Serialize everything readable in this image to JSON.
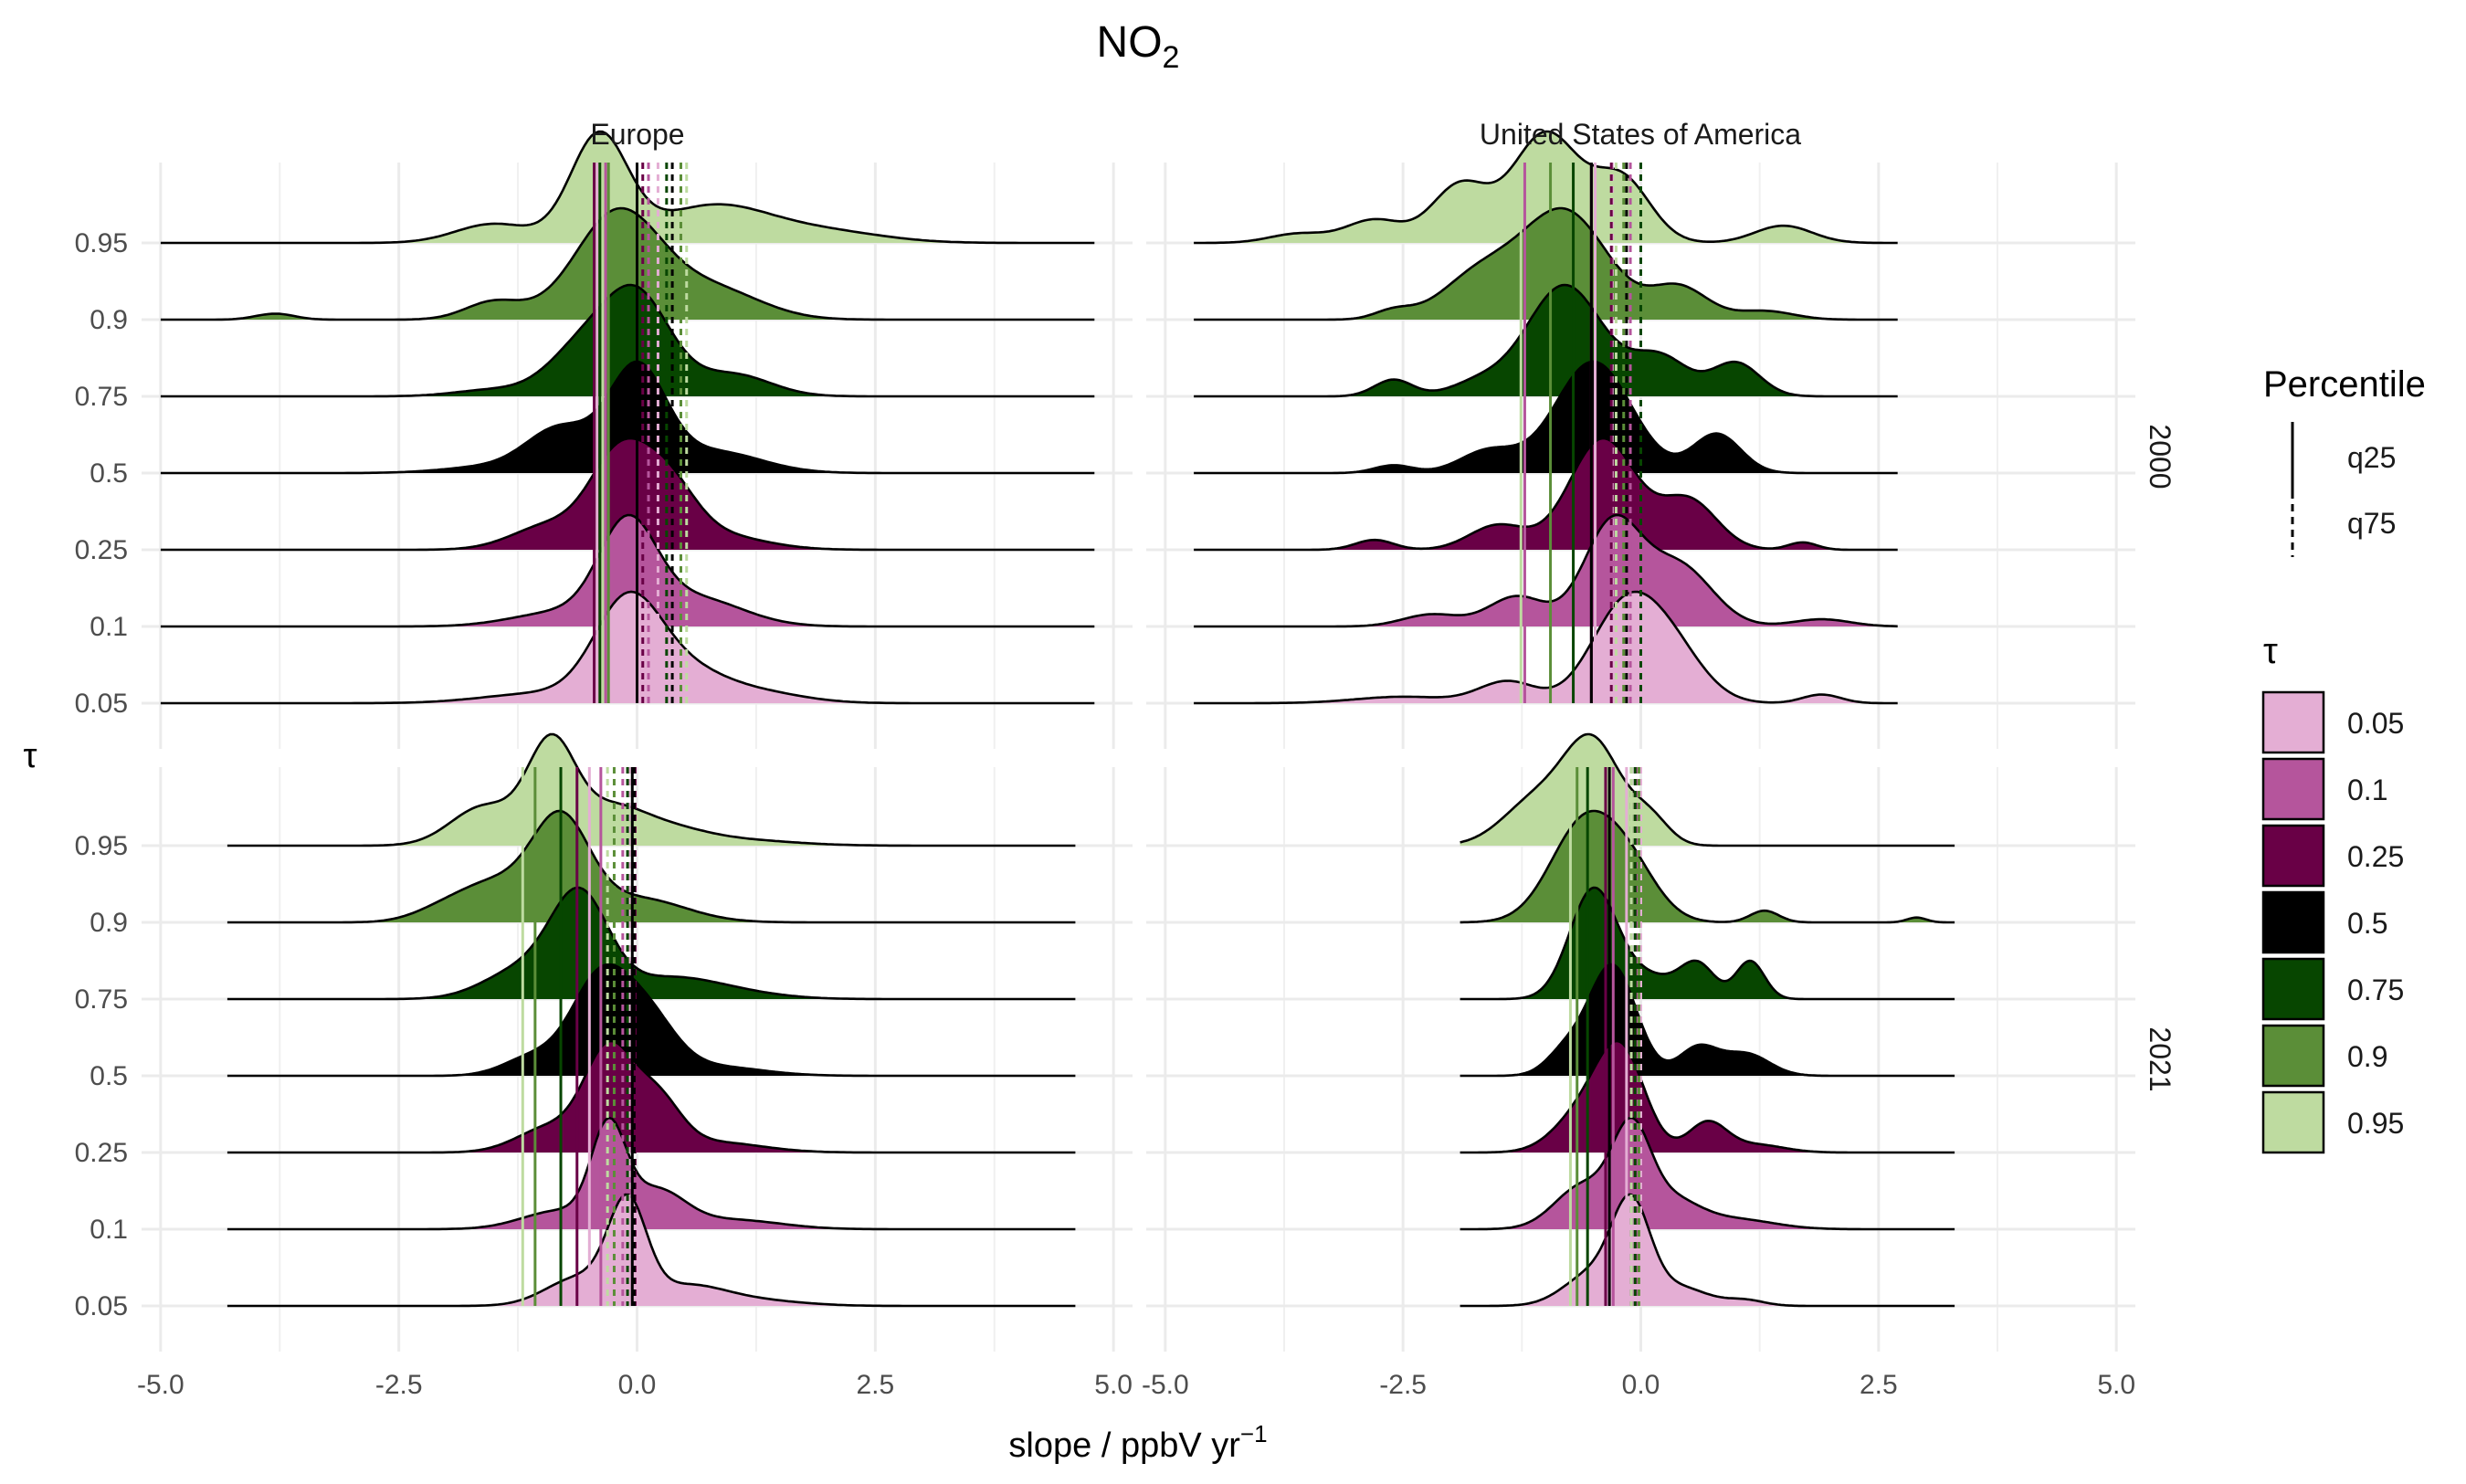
{
  "chart_data": {
    "type": "ridgeline-density",
    "title": "NO",
    "title_subscript": "2",
    "xlabel": "slope / ppbV yr",
    "xlabel_superscript": "−1",
    "ylabel": "τ",
    "xlim": [
      -5.2,
      5.2
    ],
    "x_ticks": [
      -5.0,
      -2.5,
      0.0,
      2.5,
      5.0
    ],
    "x_tick_labels": [
      "-5.0",
      "-2.5",
      "0.0",
      "2.5",
      "5.0"
    ],
    "tau_levels": [
      "0.05",
      "0.1",
      "0.25",
      "0.5",
      "0.75",
      "0.9",
      "0.95"
    ],
    "tau_colors": [
      "#e4aed4",
      "#b5559c",
      "#690046",
      "#000000",
      "#074600",
      "#5b8e38",
      "#bedba0"
    ],
    "column_labels": [
      "Europe",
      "United States of America"
    ],
    "row_labels": [
      "2000",
      "2021"
    ],
    "grid": true,
    "legend_position": "right",
    "legend": {
      "percentile_title": "Percentile",
      "percentile_items": [
        {
          "label": "q25",
          "linestyle": "solid"
        },
        {
          "label": "q75",
          "linestyle": "dashed"
        }
      ],
      "tau_title": "τ"
    },
    "panels": [
      {
        "region": "Europe",
        "year": "2000",
        "range": [
          -5.0,
          4.8
        ],
        "ridges": [
          {
            "tau": "0.05",
            "peaks": [
              [
                -0.1,
                0.35,
                1.0
              ],
              [
                0.5,
                0.4,
                0.28
              ],
              [
                1.2,
                0.5,
                0.12
              ],
              [
                -1.0,
                0.6,
                0.1
              ]
            ]
          },
          {
            "tau": "0.1",
            "peaks": [
              [
                -0.1,
                0.3,
                1.0
              ],
              [
                0.6,
                0.5,
                0.3
              ],
              [
                -0.8,
                0.5,
                0.15
              ]
            ]
          },
          {
            "tau": "0.25",
            "peaks": [
              [
                -0.2,
                0.3,
                0.85
              ],
              [
                0.3,
                0.3,
                0.6
              ],
              [
                -0.9,
                0.4,
                0.25
              ],
              [
                0.8,
                0.5,
                0.15
              ]
            ]
          },
          {
            "tau": "0.5",
            "peaks": [
              [
                0.0,
                0.3,
                0.95
              ],
              [
                -0.8,
                0.35,
                0.4
              ],
              [
                0.8,
                0.5,
                0.2
              ],
              [
                -1.5,
                0.5,
                0.06
              ]
            ]
          },
          {
            "tau": "0.75",
            "peaks": [
              [
                0.0,
                0.35,
                0.9
              ],
              [
                -0.6,
                0.35,
                0.4
              ],
              [
                1.0,
                0.4,
                0.2
              ],
              [
                -1.5,
                0.4,
                0.06
              ]
            ]
          },
          {
            "tau": "0.9",
            "peaks": [
              [
                -0.2,
                0.45,
                0.9
              ],
              [
                0.8,
                0.5,
                0.25
              ],
              [
                -1.5,
                0.3,
                0.15
              ],
              [
                -3.8,
                0.2,
                0.05
              ]
            ]
          },
          {
            "tau": "0.95",
            "peaks": [
              [
                -0.4,
                0.3,
                1.0
              ],
              [
                0.8,
                0.6,
                0.35
              ],
              [
                -1.5,
                0.4,
                0.18
              ],
              [
                2.0,
                0.6,
                0.1
              ]
            ]
          }
        ],
        "q25": [
          -0.42,
          -0.33,
          -0.45,
          0.0,
          -0.39,
          -0.3,
          -0.36
        ],
        "q75": [
          0.22,
          0.12,
          0.06,
          0.37,
          0.31,
          0.46,
          0.52
        ]
      },
      {
        "region": "United States of America",
        "year": "2000",
        "range": [
          -4.7,
          2.7
        ],
        "ridges": [
          {
            "tau": "0.05",
            "peaks": [
              [
                -0.2,
                0.35,
                0.8
              ],
              [
                0.3,
                0.35,
                0.5
              ],
              [
                -1.4,
                0.3,
                0.2
              ],
              [
                -2.5,
                0.5,
                0.06
              ],
              [
                1.9,
                0.2,
                0.08
              ]
            ]
          },
          {
            "tau": "0.1",
            "peaks": [
              [
                -0.3,
                0.3,
                0.85
              ],
              [
                0.4,
                0.35,
                0.5
              ],
              [
                -1.3,
                0.3,
                0.25
              ],
              [
                -2.2,
                0.3,
                0.1
              ],
              [
                1.9,
                0.3,
                0.06
              ]
            ]
          },
          {
            "tau": "0.25",
            "peaks": [
              [
                -0.4,
                0.35,
                0.9
              ],
              [
                0.5,
                0.3,
                0.4
              ],
              [
                -1.5,
                0.3,
                0.2
              ],
              [
                -2.8,
                0.2,
                0.08
              ],
              [
                1.7,
                0.15,
                0.06
              ]
            ]
          },
          {
            "tau": "0.5",
            "peaks": [
              [
                -0.5,
                0.4,
                1.0
              ],
              [
                0.8,
                0.25,
                0.35
              ],
              [
                -1.6,
                0.3,
                0.2
              ],
              [
                -2.6,
                0.2,
                0.07
              ]
            ]
          },
          {
            "tau": "0.75",
            "peaks": [
              [
                -0.8,
                0.4,
                1.0
              ],
              [
                0.2,
                0.3,
                0.35
              ],
              [
                1.0,
                0.25,
                0.3
              ],
              [
                -2.6,
                0.2,
                0.15
              ],
              [
                -1.7,
                0.3,
                0.12
              ]
            ]
          },
          {
            "tau": "0.9",
            "peaks": [
              [
                -0.8,
                0.45,
                1.0
              ],
              [
                -1.7,
                0.4,
                0.4
              ],
              [
                0.4,
                0.3,
                0.3
              ],
              [
                -2.6,
                0.2,
                0.08
              ],
              [
                1.3,
                0.3,
                0.08
              ]
            ]
          },
          {
            "tau": "0.95",
            "peaks": [
              [
                -1.0,
                0.35,
                0.95
              ],
              [
                -0.2,
                0.3,
                0.55
              ],
              [
                -1.9,
                0.3,
                0.5
              ],
              [
                -2.8,
                0.3,
                0.2
              ],
              [
                1.5,
                0.3,
                0.15
              ],
              [
                -3.6,
                0.3,
                0.08
              ]
            ]
          }
        ],
        "q25": [
          -0.48,
          -1.22,
          -0.52,
          -0.52,
          -0.71,
          -0.95,
          -1.26
        ],
        "q75": [
          -0.3,
          -0.11,
          -0.31,
          -0.15,
          0.0,
          -0.18,
          -0.26
        ]
      },
      {
        "region": "Europe",
        "year": "2021",
        "range": [
          -4.3,
          4.6
        ],
        "ridges": [
          {
            "tau": "0.05",
            "peaks": [
              [
                -0.1,
                0.2,
                1.0
              ],
              [
                -0.6,
                0.35,
                0.3
              ],
              [
                0.5,
                0.4,
                0.2
              ],
              [
                1.2,
                0.5,
                0.06
              ]
            ]
          },
          {
            "tau": "0.1",
            "peaks": [
              [
                -0.3,
                0.18,
                1.0
              ],
              [
                0.2,
                0.3,
                0.4
              ],
              [
                -0.8,
                0.4,
                0.2
              ],
              [
                1.0,
                0.5,
                0.1
              ]
            ]
          },
          {
            "tau": "0.25",
            "peaks": [
              [
                -0.3,
                0.25,
                0.95
              ],
              [
                0.2,
                0.25,
                0.5
              ],
              [
                -0.9,
                0.35,
                0.25
              ],
              [
                0.8,
                0.5,
                0.1
              ]
            ]
          },
          {
            "tau": "0.5",
            "peaks": [
              [
                -0.4,
                0.3,
                1.0
              ],
              [
                0.1,
                0.3,
                0.6
              ],
              [
                -1.1,
                0.3,
                0.2
              ],
              [
                0.8,
                0.5,
                0.1
              ]
            ]
          },
          {
            "tau": "0.75",
            "peaks": [
              [
                -0.6,
                0.3,
                1.0
              ],
              [
                -1.2,
                0.4,
                0.3
              ],
              [
                0.3,
                0.5,
                0.2
              ],
              [
                1.0,
                0.5,
                0.06
              ]
            ]
          },
          {
            "tau": "0.9",
            "peaks": [
              [
                -0.8,
                0.3,
                1.0
              ],
              [
                -1.5,
                0.4,
                0.4
              ],
              [
                0.0,
                0.5,
                0.25
              ],
              [
                -2.1,
                0.3,
                0.08
              ]
            ]
          },
          {
            "tau": "0.95",
            "peaks": [
              [
                -0.9,
                0.25,
                1.0
              ],
              [
                -1.6,
                0.35,
                0.4
              ],
              [
                -0.3,
                0.35,
                0.35
              ],
              [
                0.3,
                0.4,
                0.15
              ],
              [
                1.0,
                0.6,
                0.06
              ]
            ]
          }
        ],
        "q25": [
          -0.5,
          -0.38,
          -0.63,
          -0.05,
          -0.8,
          -1.07,
          -1.2
        ],
        "q75": [
          -0.08,
          -0.15,
          -0.02,
          -0.03,
          -0.1,
          -0.24,
          -0.31
        ]
      },
      {
        "region": "United States of America",
        "year": "2021",
        "range": [
          -1.9,
          3.3
        ],
        "ridges": [
          {
            "tau": "0.05",
            "peaks": [
              [
                -0.1,
                0.2,
                1.0
              ],
              [
                -0.5,
                0.3,
                0.35
              ],
              [
                0.4,
                0.3,
                0.2
              ],
              [
                1.1,
                0.2,
                0.06
              ]
            ]
          },
          {
            "tau": "0.1",
            "peaks": [
              [
                -0.1,
                0.2,
                0.9
              ],
              [
                -0.6,
                0.3,
                0.45
              ],
              [
                0.3,
                0.3,
                0.3
              ],
              [
                1.0,
                0.4,
                0.1
              ]
            ]
          },
          {
            "tau": "0.25",
            "peaks": [
              [
                -0.2,
                0.25,
                0.95
              ],
              [
                -0.6,
                0.3,
                0.4
              ],
              [
                0.7,
                0.2,
                0.3
              ],
              [
                1.2,
                0.3,
                0.08
              ]
            ]
          },
          {
            "tau": "0.5",
            "peaks": [
              [
                -0.3,
                0.25,
                1.0
              ],
              [
                0.6,
                0.2,
                0.25
              ],
              [
                1.1,
                0.25,
                0.2
              ],
              [
                -0.8,
                0.2,
                0.2
              ]
            ]
          },
          {
            "tau": "0.75",
            "peaks": [
              [
                -0.5,
                0.25,
                1.0
              ],
              [
                0.6,
                0.18,
                0.3
              ],
              [
                1.15,
                0.15,
                0.35
              ],
              [
                0.1,
                0.3,
                0.2
              ]
            ]
          },
          {
            "tau": "0.9",
            "peaks": [
              [
                -0.6,
                0.35,
                1.0
              ],
              [
                -0.1,
                0.3,
                0.45
              ],
              [
                1.3,
                0.15,
                0.12
              ],
              [
                2.9,
                0.1,
                0.05
              ]
            ]
          },
          {
            "tau": "0.95",
            "peaks": [
              [
                -0.5,
                0.3,
                1.0
              ],
              [
                -1.1,
                0.35,
                0.45
              ],
              [
                0.1,
                0.2,
                0.25
              ]
            ]
          }
        ],
        "q25": [
          -0.15,
          -0.29,
          -0.37,
          -0.33,
          -0.56,
          -0.67,
          -0.74
        ],
        "q75": [
          0.0,
          -0.04,
          -0.06,
          -0.1,
          -0.06,
          -0.02,
          -0.1
        ]
      }
    ]
  }
}
